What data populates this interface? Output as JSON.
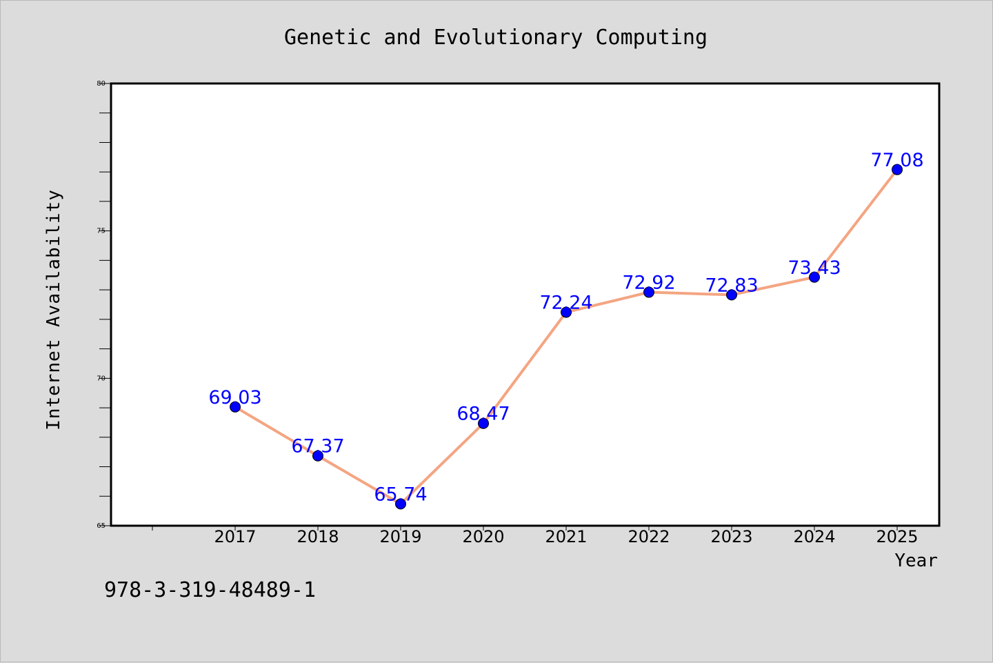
{
  "chart_data": {
    "type": "line",
    "title": "Genetic and Evolutionary Computing",
    "xlabel": "Year",
    "ylabel": "Internet Availability",
    "categories": [
      "2017",
      "2018",
      "2019",
      "2020",
      "2021",
      "2022",
      "2023",
      "2024",
      "2025"
    ],
    "values": [
      69.03,
      67.37,
      65.74,
      68.47,
      72.24,
      72.92,
      72.83,
      73.43,
      77.08
    ],
    "data_labels": [
      "69.03",
      "67.37",
      "65.74",
      "68.47",
      "72.24",
      "72.92",
      "72.83",
      "73.43",
      "77.08"
    ],
    "ylim": [
      65,
      80
    ],
    "yticks": [
      "65",
      "70",
      "75",
      "80"
    ],
    "ytick_values": [
      65,
      70,
      75,
      80
    ],
    "grid": false,
    "line_color": "#f4a582",
    "marker_color": "#0000ff",
    "label_color": "#0000ff",
    "plot_background": "#ffffff",
    "figure_background": "#dcdcdc"
  },
  "footer_text": "978-3-319-48489-1"
}
